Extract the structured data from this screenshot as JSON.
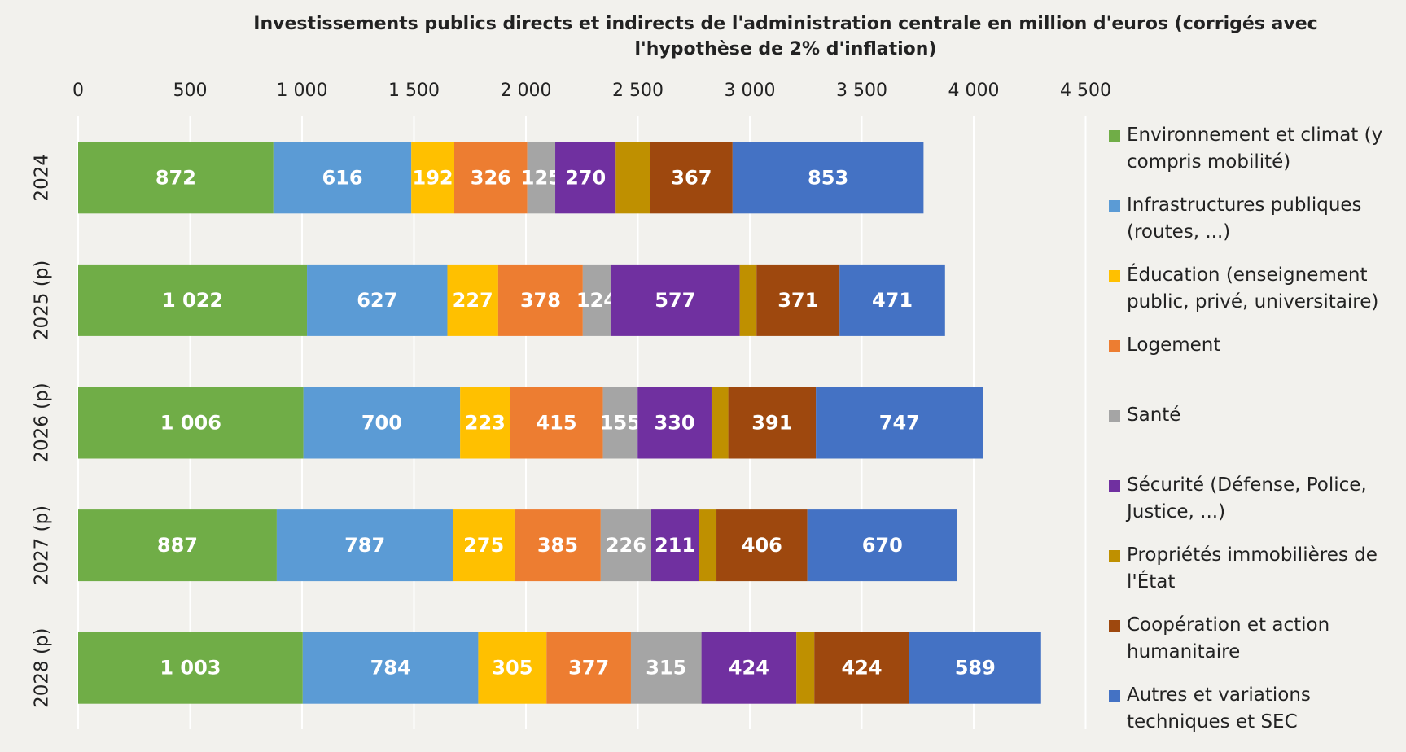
{
  "chart_data": {
    "type": "stacked_barh",
    "title": "Investissements publics directs et indirects de l'administration centrale en million d'euros (corrigés avec l'hypothèse de 2% d'inflation)",
    "categories": [
      "2024",
      "2025 (p)",
      "2026 (p)",
      "2027 (p)",
      "2028 (p)"
    ],
    "series": [
      {
        "name": "Environnement et climat (y compris mobilité)",
        "color": "#70ad47",
        "values": [
          872,
          1022,
          1006,
          887,
          1003
        ],
        "value_labels": [
          "872",
          "1 022",
          "1 006",
          "887",
          "1 003"
        ]
      },
      {
        "name": "Infrastructures publiques (routes, ...)",
        "color": "#5b9bd5",
        "values": [
          616,
          627,
          700,
          787,
          784
        ]
      },
      {
        "name": "Éducation (enseignement public, privé, universitaire)",
        "color": "#ffc000",
        "values": [
          192,
          227,
          223,
          275,
          305
        ]
      },
      {
        "name": "Logement",
        "color": "#ed7d31",
        "values": [
          326,
          378,
          415,
          385,
          377
        ]
      },
      {
        "name": "Santé",
        "color": "#a5a5a5",
        "values": [
          125,
          124,
          155,
          226,
          315
        ]
      },
      {
        "name": "Sécurité (Défense, Police, Justice, ...)",
        "color": "#7030a0",
        "values": [
          270,
          577,
          330,
          211,
          424
        ]
      },
      {
        "name": "Propriétés immobilières de l'État",
        "color": "#bf9000",
        "values": [
          155,
          75,
          75,
          80,
          80
        ],
        "show_labels": false
      },
      {
        "name": "Coopération et action humanitaire",
        "color": "#9e480e",
        "values": [
          367,
          371,
          391,
          406,
          424
        ]
      },
      {
        "name": "Autres et  variations techniques et SEC",
        "color": "#4472c4",
        "values": [
          853,
          471,
          747,
          670,
          589
        ]
      }
    ],
    "xlim": [
      0,
      4500
    ],
    "xticks": [
      0,
      500,
      {
        "value": 1000,
        "label": "1 000"
      },
      {
        "value": 1500,
        "label": "1 500"
      },
      {
        "value": 2000,
        "label": "2 000"
      },
      {
        "value": 2500,
        "label": "2 500"
      },
      {
        "value": 3000,
        "label": "3 000"
      },
      {
        "value": 3500,
        "label": "3 500"
      },
      {
        "value": 4000,
        "label": "4 000"
      },
      {
        "value": 4500,
        "label": "4 500"
      }
    ],
    "grid": true,
    "legend": "right"
  }
}
